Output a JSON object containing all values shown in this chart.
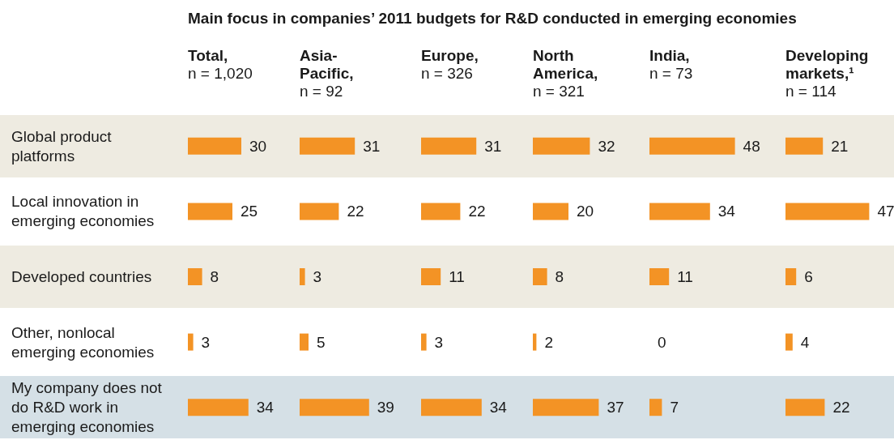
{
  "chart_data": [
    {
      "type": "other",
      "title": "Main focus in companies’ 2011 budgets for R&D conducted in emerging economies"
    },
    {
      "type": "bar",
      "orientation": "horizontal",
      "title": "Total,",
      "subtitle": "n = 1,020",
      "categories": [
        "Global product platforms",
        "Local innovation in emerging economies",
        "Developed countries",
        "Other, nonlocal emerging economies",
        "My company does not do R&D work in emerging economies"
      ],
      "values": [
        30,
        25,
        8,
        3,
        34
      ],
      "color": "#f39325",
      "data_labels": true,
      "tick_labels": "y",
      "bands": [
        {
          "axis": "y",
          "from": "Global product platforms",
          "to": "Global product platforms",
          "color": "#eeebe1"
        },
        {
          "axis": "y",
          "from": "Developed countries",
          "to": "Developed countries",
          "color": "#eeebe1"
        },
        {
          "axis": "y",
          "from": "My company does not do R&D work in emerging economies",
          "to": "My company does not do R&D work in emerging economies",
          "color": "#d5e0e6"
        }
      ]
    },
    {
      "type": "bar",
      "orientation": "horizontal",
      "title": "Asia-Pacific,",
      "subtitle": "n = 92",
      "categories": [
        "Global product platforms",
        "Local innovation in emerging economies",
        "Developed countries",
        "Other, nonlocal emerging economies",
        "My company does not do R&D work in emerging economies"
      ],
      "values": [
        31,
        22,
        3,
        5,
        39
      ],
      "color": "#f39325",
      "data_labels": true,
      "tick_labels": false,
      "bands": [
        {
          "axis": "y",
          "from": "Global product platforms",
          "to": "Global product platforms",
          "color": "#eeebe1"
        },
        {
          "axis": "y",
          "from": "Developed countries",
          "to": "Developed countries",
          "color": "#eeebe1"
        },
        {
          "axis": "y",
          "from": "My company does not do R&D work in emerging economies",
          "to": "My company does not do R&D work in emerging economies",
          "color": "#d5e0e6"
        }
      ]
    },
    {
      "type": "bar",
      "orientation": "horizontal",
      "title": "Europe,",
      "subtitle": "n = 326",
      "categories": [
        "Global product platforms",
        "Local innovation in emerging economies",
        "Developed countries",
        "Other, nonlocal emerging economies",
        "My company does not do R&D work in emerging economies"
      ],
      "values": [
        31,
        22,
        11,
        3,
        34
      ],
      "color": "#f39325",
      "data_labels": true,
      "tick_labels": false,
      "bands": [
        {
          "axis": "y",
          "from": "Global product platforms",
          "to": "Global product platforms",
          "color": "#eeebe1"
        },
        {
          "axis": "y",
          "from": "Developed countries",
          "to": "Developed countries",
          "color": "#eeebe1"
        },
        {
          "axis": "y",
          "from": "My company does not do R&D work in emerging economies",
          "to": "My company does not do R&D work in emerging economies",
          "color": "#d5e0e6"
        }
      ]
    },
    {
      "type": "bar",
      "orientation": "horizontal",
      "title": "North America,",
      "subtitle": "n = 321",
      "categories": [
        "Global product platforms",
        "Local innovation in emerging economies",
        "Developed countries",
        "Other, nonlocal emerging economies",
        "My company does not do R&D work in emerging economies"
      ],
      "values": [
        32,
        20,
        8,
        2,
        37
      ],
      "color": "#f39325",
      "data_labels": true,
      "tick_labels": false,
      "bands": [
        {
          "axis": "y",
          "from": "Global product platforms",
          "to": "Global product platforms",
          "color": "#eeebe1"
        },
        {
          "axis": "y",
          "from": "Developed countries",
          "to": "Developed countries",
          "color": "#eeebe1"
        },
        {
          "axis": "y",
          "from": "My company does not do R&D work in emerging economies",
          "to": "My company does not do R&D work in emerging economies",
          "color": "#d5e0e6"
        }
      ]
    },
    {
      "type": "bar",
      "orientation": "horizontal",
      "title": "India,",
      "subtitle": "n = 73",
      "categories": [
        "Global product platforms",
        "Local innovation in emerging economies",
        "Developed countries",
        "Other, nonlocal emerging economies",
        "My company does not do R&D work in emerging economies"
      ],
      "values": [
        48,
        34,
        11,
        0,
        7
      ],
      "color": "#f39325",
      "data_labels": true,
      "tick_labels": false,
      "bands": [
        {
          "axis": "y",
          "from": "Global product platforms",
          "to": "Global product platforms",
          "color": "#eeebe1"
        },
        {
          "axis": "y",
          "from": "Developed countries",
          "to": "Developed countries",
          "color": "#eeebe1"
        },
        {
          "axis": "y",
          "from": "My company does not do R&D work in emerging economies",
          "to": "My company does not do R&D work in emerging economies",
          "color": "#d5e0e6"
        }
      ]
    },
    {
      "type": "bar",
      "orientation": "horizontal",
      "title": "Developing markets,¹",
      "subtitle": "n = 114",
      "categories": [
        "Global product platforms",
        "Local innovation in emerging economies",
        "Developed countries",
        "Other, nonlocal emerging economies",
        "My company does not do R&D work in emerging economies"
      ],
      "values": [
        21,
        47,
        6,
        4,
        22
      ],
      "color": "#f39325",
      "data_labels": true,
      "tick_labels": false,
      "bands": [
        {
          "axis": "y",
          "from": "Global product platforms",
          "to": "Global product platforms",
          "color": "#eeebe1"
        },
        {
          "axis": "y",
          "from": "Developed countries",
          "to": "Developed countries",
          "color": "#eeebe1"
        },
        {
          "axis": "y",
          "from": "My company does not do R&D work in emerging economies",
          "to": "My company does not do R&D work in emerging economies",
          "color": "#d5e0e6"
        }
      ]
    }
  ]
}
